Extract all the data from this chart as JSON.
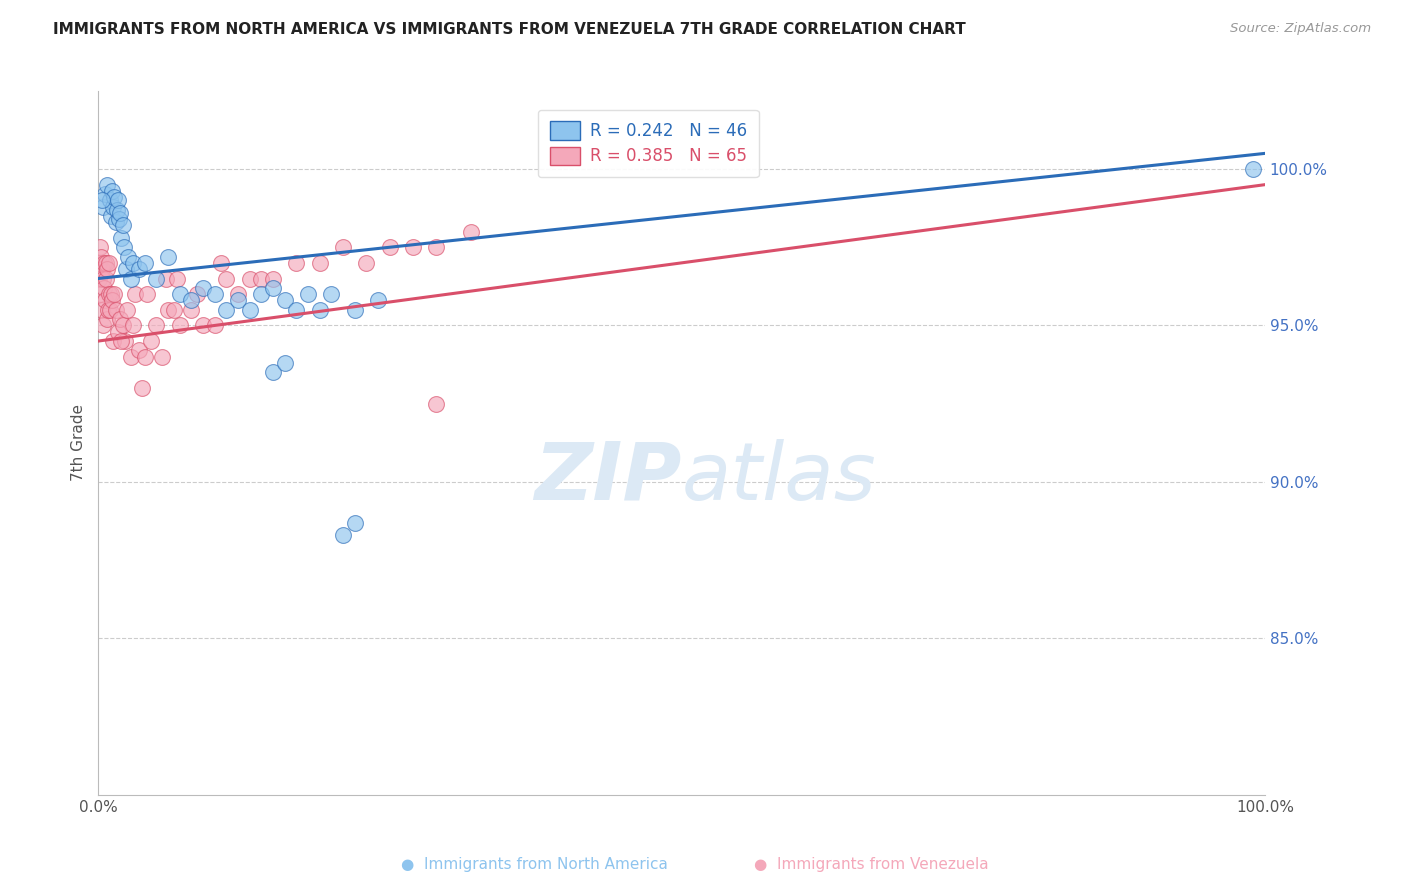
{
  "title": "IMMIGRANTS FROM NORTH AMERICA VS IMMIGRANTS FROM VENEZUELA 7TH GRADE CORRELATION CHART",
  "source": "Source: ZipAtlas.com",
  "ylabel_left": "7th Grade",
  "x_min": 0.0,
  "x_max": 100.0,
  "y_min": 80.0,
  "y_max": 102.5,
  "legend_label_blue": "Immigrants from North America",
  "legend_label_pink": "Immigrants from Venezuela",
  "R_blue": 0.242,
  "N_blue": 46,
  "R_pink": 0.385,
  "N_pink": 65,
  "color_blue": "#8EC4EE",
  "color_pink": "#F4A8BA",
  "line_color_blue": "#2B6CB8",
  "line_color_pink": "#D94F6A",
  "background_color": "#ffffff",
  "watermark_color": "#DCE9F5",
  "na_x": [
    0.4,
    0.6,
    0.8,
    1.0,
    1.1,
    1.2,
    1.3,
    1.4,
    1.5,
    1.6,
    1.7,
    1.8,
    1.9,
    2.0,
    2.1,
    2.2,
    2.4,
    2.6,
    2.8,
    3.0,
    3.5,
    4.0,
    5.0,
    6.0,
    7.0,
    8.0,
    9.0,
    10.0,
    11.0,
    12.0,
    13.0,
    14.0,
    15.0,
    16.0,
    17.0,
    18.0,
    19.0,
    20.0,
    22.0,
    24.0,
    15.0,
    16.0,
    21.0,
    22.0,
    99.0,
    0.3
  ],
  "na_y": [
    98.8,
    99.2,
    99.5,
    99.0,
    98.5,
    99.3,
    98.8,
    99.1,
    98.3,
    98.7,
    99.0,
    98.4,
    98.6,
    97.8,
    98.2,
    97.5,
    96.8,
    97.2,
    96.5,
    97.0,
    96.8,
    97.0,
    96.5,
    97.2,
    96.0,
    95.8,
    96.2,
    96.0,
    95.5,
    95.8,
    95.5,
    96.0,
    96.2,
    95.8,
    95.5,
    96.0,
    95.5,
    96.0,
    95.5,
    95.8,
    93.5,
    93.8,
    88.3,
    88.7,
    100.0,
    99.0
  ],
  "ven_x": [
    0.05,
    0.1,
    0.15,
    0.2,
    0.25,
    0.3,
    0.35,
    0.4,
    0.45,
    0.5,
    0.55,
    0.6,
    0.65,
    0.7,
    0.75,
    0.8,
    0.85,
    0.9,
    0.95,
    1.0,
    1.1,
    1.2,
    1.3,
    1.4,
    1.5,
    1.7,
    1.9,
    2.1,
    2.3,
    2.5,
    2.8,
    3.0,
    3.5,
    4.0,
    4.5,
    5.0,
    5.5,
    6.0,
    7.0,
    8.0,
    9.0,
    10.0,
    11.0,
    12.0,
    13.0,
    14.0,
    15.0,
    17.0,
    19.0,
    21.0,
    23.0,
    25.0,
    27.0,
    29.0,
    32.0,
    2.0,
    3.2,
    6.5,
    8.5,
    10.5,
    3.8,
    4.2,
    5.8,
    6.8,
    29.0
  ],
  "ven_y": [
    97.0,
    96.5,
    97.5,
    96.0,
    97.2,
    96.8,
    95.5,
    96.5,
    95.0,
    97.0,
    96.2,
    95.8,
    97.0,
    96.5,
    95.2,
    96.8,
    95.5,
    97.0,
    96.0,
    95.5,
    96.0,
    95.8,
    94.5,
    96.0,
    95.5,
    94.8,
    95.2,
    95.0,
    94.5,
    95.5,
    94.0,
    95.0,
    94.2,
    94.0,
    94.5,
    95.0,
    94.0,
    95.5,
    95.0,
    95.5,
    95.0,
    95.0,
    96.5,
    96.0,
    96.5,
    96.5,
    96.5,
    97.0,
    97.0,
    97.5,
    97.0,
    97.5,
    97.5,
    97.5,
    98.0,
    94.5,
    96.0,
    95.5,
    96.0,
    97.0,
    93.0,
    96.0,
    96.5,
    96.5,
    92.5
  ],
  "trend_blue_x0": 0.0,
  "trend_blue_y0": 96.5,
  "trend_blue_x1": 100.0,
  "trend_blue_y1": 100.5,
  "trend_pink_x0": 0.0,
  "trend_pink_y0": 94.5,
  "trend_pink_x1": 100.0,
  "trend_pink_y1": 99.5
}
